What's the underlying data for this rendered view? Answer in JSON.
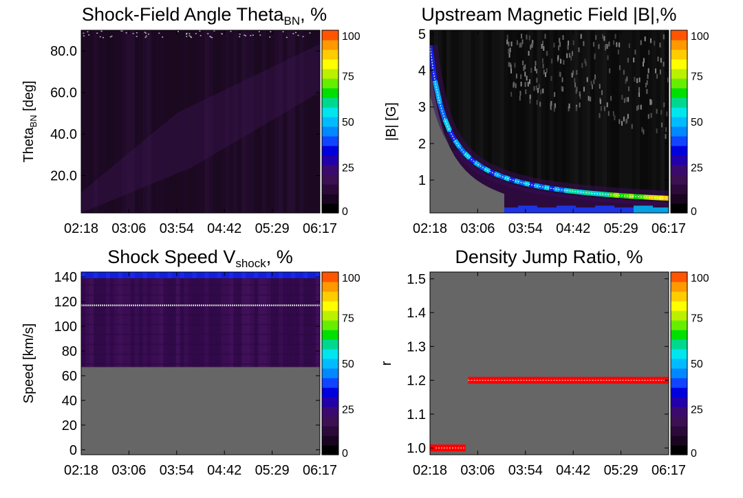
{
  "figure": {
    "panels": [
      {
        "id": "p1",
        "title_main": "Shock-Field Angle Theta",
        "title_sub": "BN",
        "title_suffix": ", %"
      },
      {
        "id": "p2",
        "title_main": "Upstream Magnetic Field |B|,%",
        "title_sub": "",
        "title_suffix": ""
      },
      {
        "id": "p3",
        "title_main": "Shock Speed V",
        "title_sub": "shock",
        "title_suffix": ", %"
      },
      {
        "id": "p4",
        "title_main": "Density Jump Ratio, %",
        "title_sub": "",
        "title_suffix": ""
      }
    ]
  },
  "colormap": [
    "#000000",
    "#1a0521",
    "#2b0a3a",
    "#3c1052",
    "#3b0a6e",
    "#2200aa",
    "#0000dd",
    "#1144ff",
    "#0088ff",
    "#00bbff",
    "#00e5ee",
    "#00d890",
    "#00e000",
    "#66ee00",
    "#bbf000",
    "#ffff00",
    "#ffcc00",
    "#ff9900",
    "#ff5500"
  ],
  "colors": {
    "background_gray": "#666666",
    "hover_red": "#ff0000"
  },
  "chart_data": [
    {
      "type": "heatmap",
      "title": "Shock-Field Angle Theta_BN, %",
      "xlabel": "",
      "ylabel_main": "Theta",
      "ylabel_sub": "BN",
      "ylabel_suffix": " [deg]",
      "x_ticks": [
        "02:18",
        "03:06",
        "03:54",
        "04:42",
        "05:29",
        "06:17"
      ],
      "y_ticks": [
        {
          "v": 20,
          "label": "20.0"
        },
        {
          "v": 40,
          "label": "40.0"
        },
        {
          "v": 60,
          "label": "60.0"
        },
        {
          "v": 80,
          "label": "80.0"
        }
      ],
      "ylim": [
        2,
        90
      ],
      "colorbar": {
        "range": [
          0,
          100
        ],
        "ticks": [
          "0",
          "25",
          "50",
          "75",
          "100"
        ]
      }
    },
    {
      "type": "heatmap",
      "title": "Upstream Magnetic Field |B|,%",
      "ylabel": "|B| [G]",
      "x_ticks": [
        "02:18",
        "03:06",
        "03:54",
        "04:42",
        "05:29",
        "06:17"
      ],
      "y_ticks": [
        {
          "v": 1,
          "label": "1"
        },
        {
          "v": 2,
          "label": "2"
        },
        {
          "v": 3,
          "label": "3"
        },
        {
          "v": 4,
          "label": "4"
        },
        {
          "v": 5,
          "label": "5"
        }
      ],
      "ylim": [
        0.1,
        5.1
      ],
      "colorbar": {
        "range": [
          0,
          100
        ],
        "ticks": [
          "0",
          "25",
          "50",
          "75",
          "100"
        ]
      }
    },
    {
      "type": "heatmap",
      "title": "Shock Speed V_shock, %",
      "ylabel": "Speed [km/s]",
      "x_ticks": [
        "02:18",
        "03:06",
        "03:54",
        "04:42",
        "05:29",
        "06:17"
      ],
      "y_ticks": [
        {
          "v": 0,
          "label": "0"
        },
        {
          "v": 20,
          "label": "20"
        },
        {
          "v": 40,
          "label": "40"
        },
        {
          "v": 60,
          "label": "60"
        },
        {
          "v": 80,
          "label": "80"
        },
        {
          "v": 100,
          "label": "100"
        },
        {
          "v": 120,
          "label": "120"
        },
        {
          "v": 140,
          "label": "140"
        }
      ],
      "ylim": [
        -4,
        144
      ],
      "gray_below": 67,
      "blue_band": [
        139,
        144
      ],
      "mean_line": 117,
      "colorbar": {
        "range": [
          0,
          100
        ],
        "ticks": [
          "0",
          "25",
          "50",
          "75",
          "100"
        ]
      }
    },
    {
      "type": "heatmap",
      "title": "Density Jump Ratio, %",
      "ylabel": "r",
      "x_ticks": [
        "02:18",
        "03:06",
        "03:54",
        "04:42",
        "05:29",
        "06:17"
      ],
      "y_ticks": [
        {
          "v": 1.0,
          "label": "1.0"
        },
        {
          "v": 1.1,
          "label": "1.1"
        },
        {
          "v": 1.2,
          "label": "1.2"
        },
        {
          "v": 1.3,
          "label": "1.3"
        },
        {
          "v": 1.4,
          "label": "1.4"
        },
        {
          "v": 1.5,
          "label": "1.5"
        }
      ],
      "ylim": [
        0.98,
        1.52
      ],
      "segments": [
        {
          "r": 1.0,
          "t_start": 0.0,
          "t_end": 0.15
        },
        {
          "r": 1.2,
          "t_start": 0.16,
          "t_end": 1.0
        }
      ],
      "colorbar": {
        "range": [
          0,
          100
        ],
        "ticks": [
          "0",
          "25",
          "50",
          "75",
          "100"
        ]
      }
    }
  ]
}
